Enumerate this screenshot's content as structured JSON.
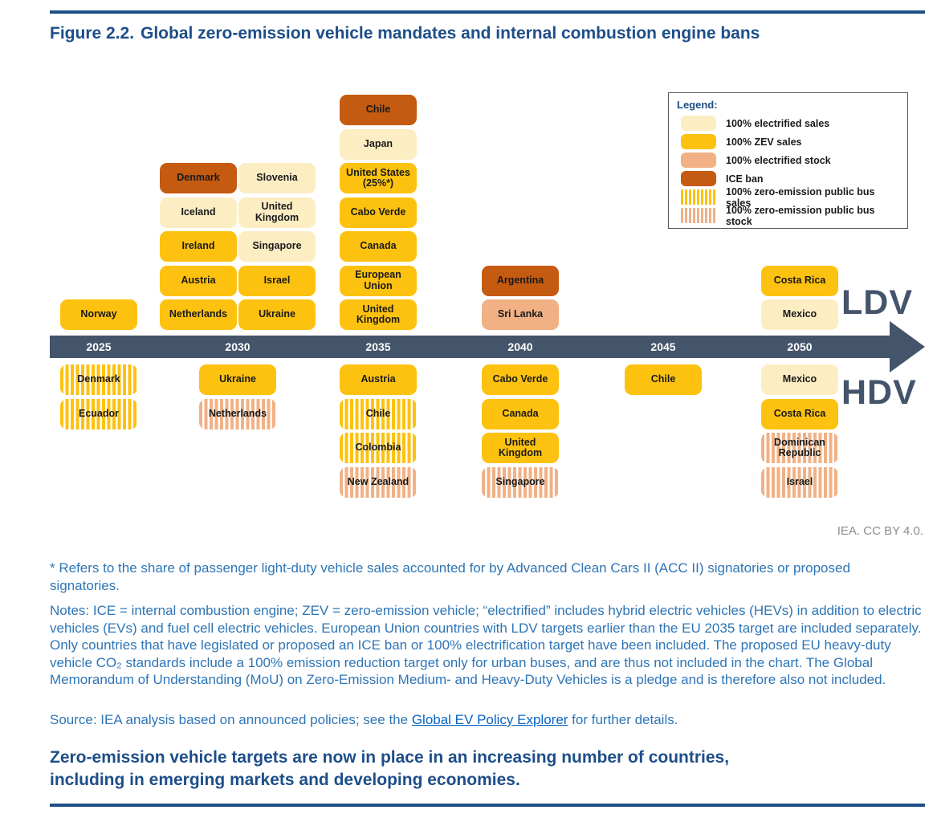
{
  "figure": {
    "label": "Figure 2.2.",
    "title": "Global zero-emission vehicle mandates and internal combustion engine bans"
  },
  "legend": {
    "title": "Legend:",
    "items": [
      {
        "label": "100% electrified sales",
        "type": "electrified_sales"
      },
      {
        "label": "100% ZEV sales",
        "type": "zev_sales"
      },
      {
        "label": "100% electrified stock",
        "type": "electrified_stock"
      },
      {
        "label": "ICE ban",
        "type": "ice_ban"
      },
      {
        "label": "100% zero-emission public bus sales",
        "type": "bus_sales"
      },
      {
        "label": "100% zero-emission public bus stock",
        "type": "bus_stock"
      }
    ]
  },
  "colors": {
    "electrified_sales": "#FCEDC3",
    "zev_sales": "#FDC20F",
    "electrified_stock": "#F1B185",
    "ice_ban": "#C55A11",
    "timeline": "#44546A",
    "heading_blue": "#1D4E89",
    "notes_blue": "#2E75B6",
    "link_blue": "#0563C1",
    "credit_gray": "#8C8C8C"
  },
  "timeline": {
    "years": [
      "2025",
      "2030",
      "2035",
      "2040",
      "2045",
      "2050"
    ],
    "ldv_label": "LDV",
    "hdv_label": "HDV"
  },
  "chart": {
    "ldv_columns": [
      {
        "year": "2025",
        "stacks": [
          [
            {
              "label": "Norway",
              "type": "zev_sales"
            }
          ]
        ]
      },
      {
        "year": "2030",
        "stacks": [
          [
            {
              "label": "Denmark",
              "type": "ice_ban"
            },
            {
              "label": "Iceland",
              "type": "electrified_sales"
            },
            {
              "label": "Ireland",
              "type": "zev_sales"
            },
            {
              "label": "Austria",
              "type": "zev_sales"
            },
            {
              "label": "Netherlands",
              "type": "zev_sales"
            }
          ],
          [
            {
              "label": "Slovenia",
              "type": "electrified_sales"
            },
            {
              "label": "United Kingdom",
              "type": "electrified_sales"
            },
            {
              "label": "Singapore",
              "type": "electrified_sales"
            },
            {
              "label": "Israel",
              "type": "zev_sales"
            },
            {
              "label": "Ukraine",
              "type": "zev_sales"
            }
          ]
        ]
      },
      {
        "year": "2035",
        "stacks": [
          [
            {
              "label": "Chile",
              "type": "ice_ban"
            },
            {
              "label": "Japan",
              "type": "electrified_sales"
            },
            {
              "label": "United States (25%*)",
              "type": "zev_sales"
            },
            {
              "label": "Cabo Verde",
              "type": "zev_sales"
            },
            {
              "label": "Canada",
              "type": "zev_sales"
            },
            {
              "label": "European Union",
              "type": "zev_sales"
            },
            {
              "label": "United Kingdom",
              "type": "zev_sales"
            }
          ]
        ]
      },
      {
        "year": "2040",
        "stacks": [
          [
            {
              "label": "Argentina",
              "type": "ice_ban"
            },
            {
              "label": "Sri Lanka",
              "type": "electrified_stock"
            }
          ]
        ]
      },
      {
        "year": "2045",
        "stacks": [
          []
        ]
      },
      {
        "year": "2050",
        "stacks": [
          [
            {
              "label": "Costa Rica",
              "type": "zev_sales"
            },
            {
              "label": "Mexico",
              "type": "electrified_sales"
            }
          ]
        ]
      }
    ],
    "hdv_columns": [
      {
        "year": "2025",
        "stacks": [
          [
            {
              "label": "Denmark",
              "type": "bus_sales"
            },
            {
              "label": "Ecuador",
              "type": "bus_sales"
            }
          ]
        ]
      },
      {
        "year": "2030",
        "stacks": [
          [
            {
              "label": "Ukraine",
              "type": "zev_sales"
            },
            {
              "label": "Netherlands",
              "type": "bus_stock"
            }
          ]
        ]
      },
      {
        "year": "2035",
        "stacks": [
          [
            {
              "label": "Austria",
              "type": "zev_sales"
            },
            {
              "label": "Chile",
              "type": "bus_sales"
            },
            {
              "label": "Colombia",
              "type": "bus_sales"
            },
            {
              "label": "New Zealand",
              "type": "bus_stock"
            }
          ]
        ]
      },
      {
        "year": "2040",
        "stacks": [
          [
            {
              "label": "Cabo Verde",
              "type": "zev_sales"
            },
            {
              "label": "Canada",
              "type": "zev_sales"
            },
            {
              "label": "United Kingdom",
              "type": "zev_sales"
            },
            {
              "label": "Singapore",
              "type": "bus_stock"
            }
          ]
        ]
      },
      {
        "year": "2045",
        "stacks": [
          [
            {
              "label": "Chile",
              "type": "zev_sales"
            }
          ]
        ]
      },
      {
        "year": "2050",
        "stacks": [
          [
            {
              "label": "Mexico",
              "type": "electrified_sales"
            },
            {
              "label": "Costa Rica",
              "type": "zev_sales"
            },
            {
              "label": "Dominican Republic",
              "type": "bus_stock"
            },
            {
              "label": "Israel",
              "type": "bus_stock"
            }
          ]
        ]
      }
    ]
  },
  "chart_data": {
    "type": "table",
    "title": "Global zero-emission vehicle mandates and internal combustion engine bans",
    "columns": [
      "segment",
      "year",
      "country",
      "policy"
    ],
    "rows": [
      [
        "LDV",
        2025,
        "Norway",
        "100% ZEV sales"
      ],
      [
        "LDV",
        2030,
        "Denmark",
        "ICE ban"
      ],
      [
        "LDV",
        2030,
        "Iceland",
        "100% electrified sales"
      ],
      [
        "LDV",
        2030,
        "Ireland",
        "100% ZEV sales"
      ],
      [
        "LDV",
        2030,
        "Austria",
        "100% ZEV sales"
      ],
      [
        "LDV",
        2030,
        "Netherlands",
        "100% ZEV sales"
      ],
      [
        "LDV",
        2030,
        "Slovenia",
        "100% electrified sales"
      ],
      [
        "LDV",
        2030,
        "United Kingdom",
        "100% electrified sales"
      ],
      [
        "LDV",
        2030,
        "Singapore",
        "100% electrified sales"
      ],
      [
        "LDV",
        2030,
        "Israel",
        "100% ZEV sales"
      ],
      [
        "LDV",
        2030,
        "Ukraine",
        "100% ZEV sales"
      ],
      [
        "LDV",
        2035,
        "Chile",
        "ICE ban"
      ],
      [
        "LDV",
        2035,
        "Japan",
        "100% electrified sales"
      ],
      [
        "LDV",
        2035,
        "United States (25%*)",
        "100% ZEV sales"
      ],
      [
        "LDV",
        2035,
        "Cabo Verde",
        "100% ZEV sales"
      ],
      [
        "LDV",
        2035,
        "Canada",
        "100% ZEV sales"
      ],
      [
        "LDV",
        2035,
        "European Union",
        "100% ZEV sales"
      ],
      [
        "LDV",
        2035,
        "United Kingdom",
        "100% ZEV sales"
      ],
      [
        "LDV",
        2040,
        "Argentina",
        "ICE ban"
      ],
      [
        "LDV",
        2040,
        "Sri Lanka",
        "100% electrified stock"
      ],
      [
        "LDV",
        2050,
        "Costa Rica",
        "100% ZEV sales"
      ],
      [
        "LDV",
        2050,
        "Mexico",
        "100% electrified sales"
      ],
      [
        "HDV",
        2025,
        "Denmark",
        "100% zero-emission public bus sales"
      ],
      [
        "HDV",
        2025,
        "Ecuador",
        "100% zero-emission public bus sales"
      ],
      [
        "HDV",
        2030,
        "Ukraine",
        "100% ZEV sales"
      ],
      [
        "HDV",
        2030,
        "Netherlands",
        "100% zero-emission public bus stock"
      ],
      [
        "HDV",
        2035,
        "Austria",
        "100% ZEV sales"
      ],
      [
        "HDV",
        2035,
        "Chile",
        "100% zero-emission public bus sales"
      ],
      [
        "HDV",
        2035,
        "Colombia",
        "100% zero-emission public bus sales"
      ],
      [
        "HDV",
        2035,
        "New Zealand",
        "100% zero-emission public bus stock"
      ],
      [
        "HDV",
        2040,
        "Cabo Verde",
        "100% ZEV sales"
      ],
      [
        "HDV",
        2040,
        "Canada",
        "100% ZEV sales"
      ],
      [
        "HDV",
        2040,
        "United Kingdom",
        "100% ZEV sales"
      ],
      [
        "HDV",
        2040,
        "Singapore",
        "100% zero-emission public bus stock"
      ],
      [
        "HDV",
        2045,
        "Chile",
        "100% ZEV sales"
      ],
      [
        "HDV",
        2050,
        "Mexico",
        "100% electrified sales"
      ],
      [
        "HDV",
        2050,
        "Costa Rica",
        "100% ZEV sales"
      ],
      [
        "HDV",
        2050,
        "Dominican Republic",
        "100% zero-emission public bus stock"
      ],
      [
        "HDV",
        2050,
        "Israel",
        "100% zero-emission public bus stock"
      ]
    ]
  },
  "credit": "IEA. CC BY 4.0.",
  "footnote": "* Refers to the share of passenger light-duty vehicle sales accounted for by Advanced Clean Cars II (ACC II) signatories or proposed signatories.",
  "notes": "Notes: ICE = internal combustion engine; ZEV = zero-emission vehicle; “electrified” includes hybrid electric vehicles (HEVs) in addition to electric vehicles (EVs) and fuel cell electric vehicles. European Union countries with LDV targets earlier than the EU 2035 target are included separately. Only countries that have legislated or proposed an ICE ban or 100% electrification target have been included. The proposed EU heavy-duty vehicle CO₂ standards include a 100% emission reduction target only for urban buses, and are thus not included in the chart. The Global Memorandum of Understanding (MoU) on Zero-Emission Medium- and Heavy-Duty Vehicles is a pledge and is therefore also not included.",
  "source": {
    "prefix": "Source: IEA analysis based on announced policies; see the ",
    "link_text": "Global EV Policy Explorer",
    "suffix": " for further details."
  },
  "takeaway": {
    "line1": "Zero-emission vehicle targets are now in place in an increasing number of countries,",
    "line2": "including in emerging markets and developing economies."
  }
}
